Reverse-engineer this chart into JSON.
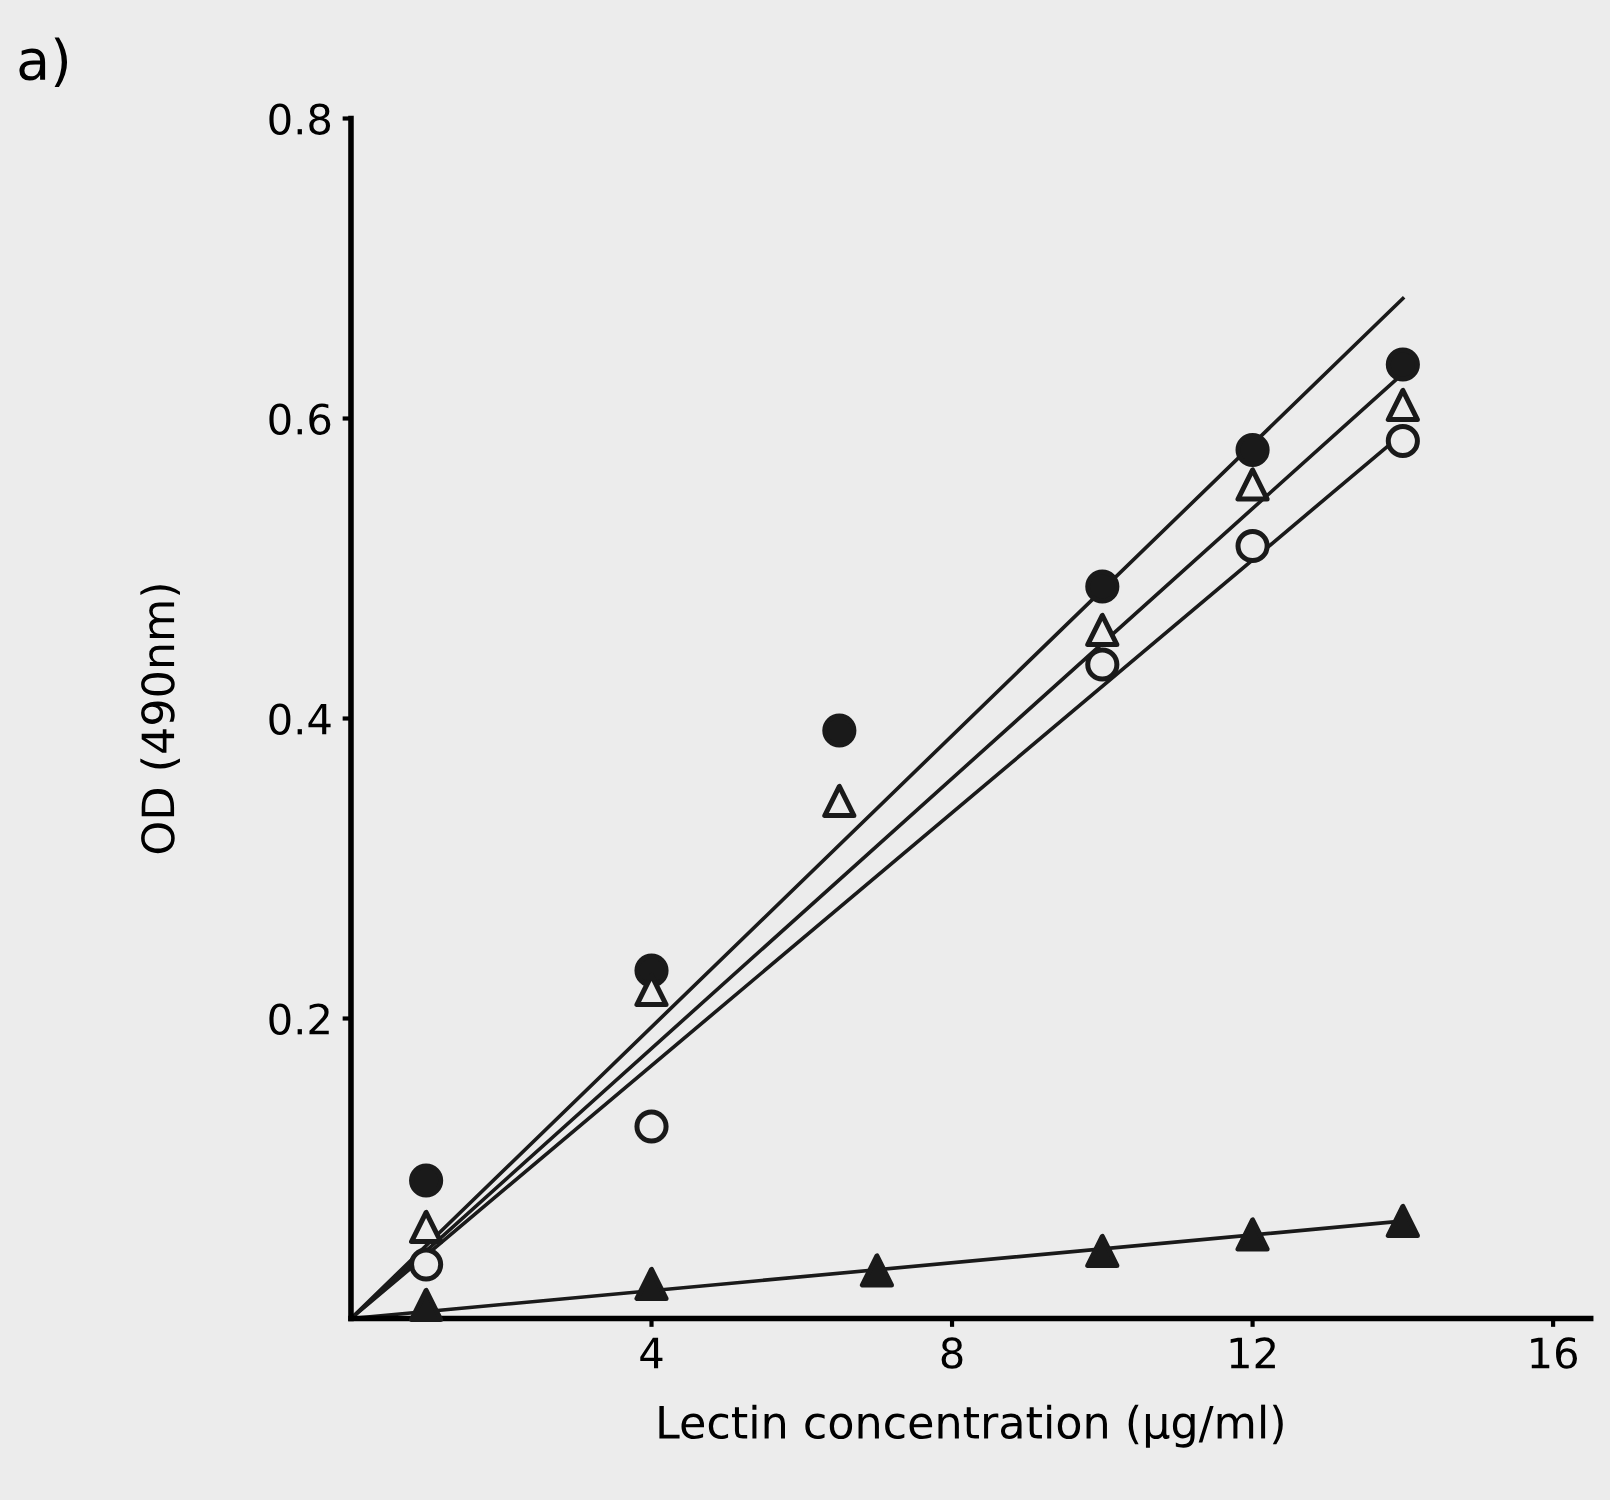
{
  "chart_data": {
    "type": "scatter",
    "xlabel": "Lectin concentration (μg/ml)",
    "ylabel": "OD (490nm)",
    "annotations": [
      "a)"
    ],
    "xlim": [
      0,
      16.5
    ],
    "ylim": [
      0,
      0.8
    ],
    "xticks": [
      4,
      8,
      12,
      16
    ],
    "yticks": [
      0.2,
      0.4,
      0.6,
      0.8
    ],
    "grid": false,
    "legend": false,
    "series": [
      {
        "marker": "circle",
        "color": "#1a1a1a",
        "x": [
          1,
          4,
          6.5,
          10,
          12,
          14
        ],
        "values": [
          0.092,
          0.232,
          0.392,
          0.488,
          0.579,
          0.636
        ]
      },
      {
        "marker": "triangle",
        "color": "#ececec",
        "x": [
          1,
          4,
          6.5,
          10,
          12,
          14
        ],
        "values": [
          0.061,
          0.219,
          0.345,
          0.459,
          0.556,
          0.609
        ]
      },
      {
        "marker": "circle",
        "color": "#ececec",
        "x": [
          1,
          4,
          10,
          12,
          14
        ],
        "values": [
          0.036,
          0.128,
          0.436,
          0.515,
          0.585
        ]
      },
      {
        "marker": "triangle",
        "color": "#1a1a1a",
        "x": [
          1,
          4,
          7,
          10,
          12,
          14
        ],
        "values": [
          0.009,
          0.023,
          0.032,
          0.045,
          0.056,
          0.065
        ]
      },
      {
        "type": "line",
        "marker": "none",
        "line_style": "solid",
        "color": "#1a1a1a",
        "x": [
          0,
          14
        ],
        "values": [
          0,
          0.68
        ]
      },
      {
        "type": "line",
        "marker": "none",
        "line_style": "solid",
        "color": "#1a1a1a",
        "x": [
          0,
          14
        ],
        "values": [
          0,
          0.63
        ]
      },
      {
        "type": "line",
        "marker": "none",
        "line_style": "solid",
        "color": "#1a1a1a",
        "x": [
          0,
          14
        ],
        "values": [
          0,
          0.59
        ]
      },
      {
        "type": "line",
        "marker": "none",
        "line_style": "solid",
        "color": "#1a1a1a",
        "x": [
          0,
          14
        ],
        "values": [
          0,
          0.065
        ]
      }
    ]
  }
}
